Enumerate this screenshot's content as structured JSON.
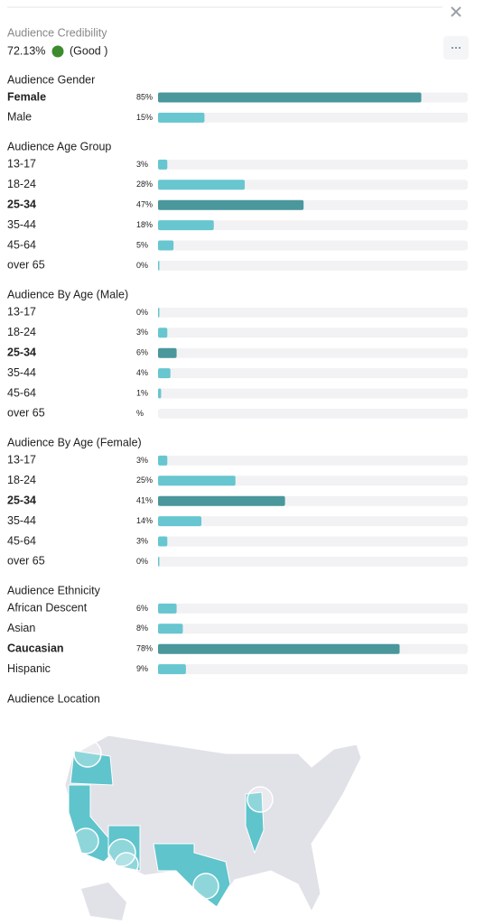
{
  "header": {
    "title": "Audience Credibility",
    "score": "72.13%",
    "rating": "(Good )"
  },
  "sections": [
    {
      "title": "Audience Gender",
      "highlight": 0,
      "rows": [
        {
          "label": "Female",
          "value": 85,
          "value_label": "85%"
        },
        {
          "label": "Male",
          "value": 15,
          "value_label": "15%"
        }
      ]
    },
    {
      "title": "Audience Age Group",
      "highlight": 2,
      "rows": [
        {
          "label": "13-17",
          "value": 3,
          "value_label": "3%"
        },
        {
          "label": "18-24",
          "value": 28,
          "value_label": "28%"
        },
        {
          "label": "25-34",
          "value": 47,
          "value_label": "47%"
        },
        {
          "label": "35-44",
          "value": 18,
          "value_label": "18%"
        },
        {
          "label": "45-64",
          "value": 5,
          "value_label": "5%"
        },
        {
          "label": "over 65",
          "value": 0,
          "value_label": "0%"
        }
      ]
    },
    {
      "title": "Audience By Age (Male)",
      "highlight": 2,
      "rows": [
        {
          "label": "13-17",
          "value": 0,
          "value_label": "0%"
        },
        {
          "label": "18-24",
          "value": 3,
          "value_label": "3%"
        },
        {
          "label": "25-34",
          "value": 6,
          "value_label": "6%"
        },
        {
          "label": "35-44",
          "value": 4,
          "value_label": "4%"
        },
        {
          "label": "45-64",
          "value": 1,
          "value_label": "1%"
        },
        {
          "label": "over 65",
          "value": null,
          "value_label": "%"
        }
      ]
    },
    {
      "title": "Audience By Age (Female)",
      "highlight": 2,
      "rows": [
        {
          "label": "13-17",
          "value": 3,
          "value_label": "3%"
        },
        {
          "label": "18-24",
          "value": 25,
          "value_label": "25%"
        },
        {
          "label": "25-34",
          "value": 41,
          "value_label": "41%"
        },
        {
          "label": "35-44",
          "value": 14,
          "value_label": "14%"
        },
        {
          "label": "45-64",
          "value": 3,
          "value_label": "3%"
        },
        {
          "label": "over 65",
          "value": 0,
          "value_label": "0%"
        }
      ]
    },
    {
      "title": "Audience Ethnicity",
      "highlight": 2,
      "rows": [
        {
          "label": "African Descent",
          "value": 6,
          "value_label": "6%"
        },
        {
          "label": "Asian",
          "value": 8,
          "value_label": "8%"
        },
        {
          "label": "Caucasian",
          "value": 78,
          "value_label": "78%"
        },
        {
          "label": "Hispanic",
          "value": 9,
          "value_label": "9%"
        }
      ]
    }
  ],
  "location": {
    "title": "Audience Location"
  }
}
